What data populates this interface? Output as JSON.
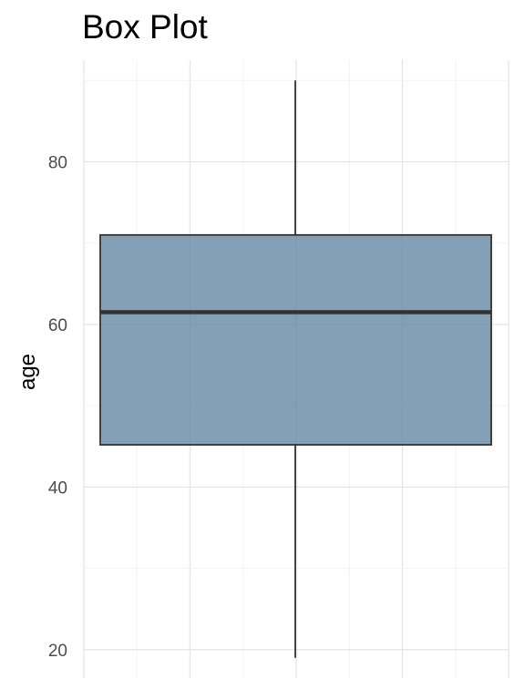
{
  "chart_data": {
    "type": "box",
    "title": "Box Plot",
    "xlabel": "",
    "ylabel": "age",
    "ylim": [
      16.5,
      92.5
    ],
    "y_ticks": [
      20,
      40,
      60,
      80
    ],
    "grid": true,
    "series": [
      {
        "whisker_low": 19,
        "q1": 45.2,
        "median": 61.5,
        "q3": 71,
        "whisker_high": 90
      }
    ],
    "colors": {
      "box_fill": "#5F83A0",
      "box_stroke": "#333333",
      "median": "#333333",
      "whisker": "#1a1a1a",
      "grid_major": "#e5e5e5",
      "grid_minor": "#f2f2f2"
    }
  }
}
